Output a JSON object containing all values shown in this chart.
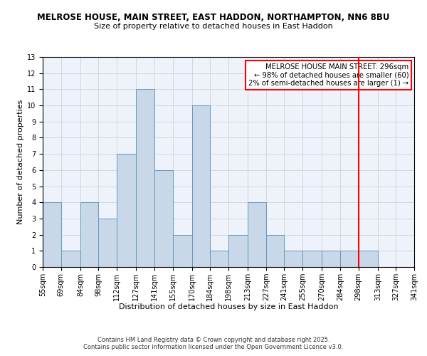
{
  "title": "MELROSE HOUSE, MAIN STREET, EAST HADDON, NORTHAMPTON, NN6 8BU",
  "subtitle": "Size of property relative to detached houses in East Haddon",
  "xlabel": "Distribution of detached houses by size in East Haddon",
  "ylabel": "Number of detached properties",
  "bin_edges": [
    55,
    69,
    84,
    98,
    112,
    127,
    141,
    155,
    170,
    184,
    198,
    213,
    227,
    241,
    255,
    270,
    284,
    298,
    313,
    327,
    341
  ],
  "counts": [
    4,
    1,
    4,
    3,
    7,
    11,
    6,
    2,
    10,
    1,
    2,
    4,
    2,
    1,
    1,
    1,
    1,
    1,
    0,
    0
  ],
  "bar_color": "#c8d8e8",
  "bar_edge_color": "#6699bb",
  "vline_x": 298,
  "vline_color": "red",
  "annotation_title": "MELROSE HOUSE MAIN STREET: 296sqm",
  "annotation_line1": "← 98% of detached houses are smaller (60)",
  "annotation_line2": "2% of semi-detached houses are larger (1) →",
  "ylim": [
    0,
    13
  ],
  "yticks": [
    0,
    1,
    2,
    3,
    4,
    5,
    6,
    7,
    8,
    9,
    10,
    11,
    12,
    13
  ],
  "tick_labels": [
    "55sqm",
    "69sqm",
    "84sqm",
    "98sqm",
    "112sqm",
    "127sqm",
    "141sqm",
    "155sqm",
    "170sqm",
    "184sqm",
    "198sqm",
    "213sqm",
    "227sqm",
    "241sqm",
    "255sqm",
    "270sqm",
    "284sqm",
    "298sqm",
    "313sqm",
    "327sqm",
    "341sqm"
  ],
  "footnote1": "Contains HM Land Registry data © Crown copyright and database right 2025.",
  "footnote2": "Contains public sector information licensed under the Open Government Licence v3.0.",
  "bg_color": "#eef2fa",
  "title_fontsize": 8.5,
  "subtitle_fontsize": 8.0,
  "axis_label_fontsize": 8.0,
  "tick_fontsize": 7.0,
  "annotation_fontsize": 7.2,
  "footnote_fontsize": 6.0
}
